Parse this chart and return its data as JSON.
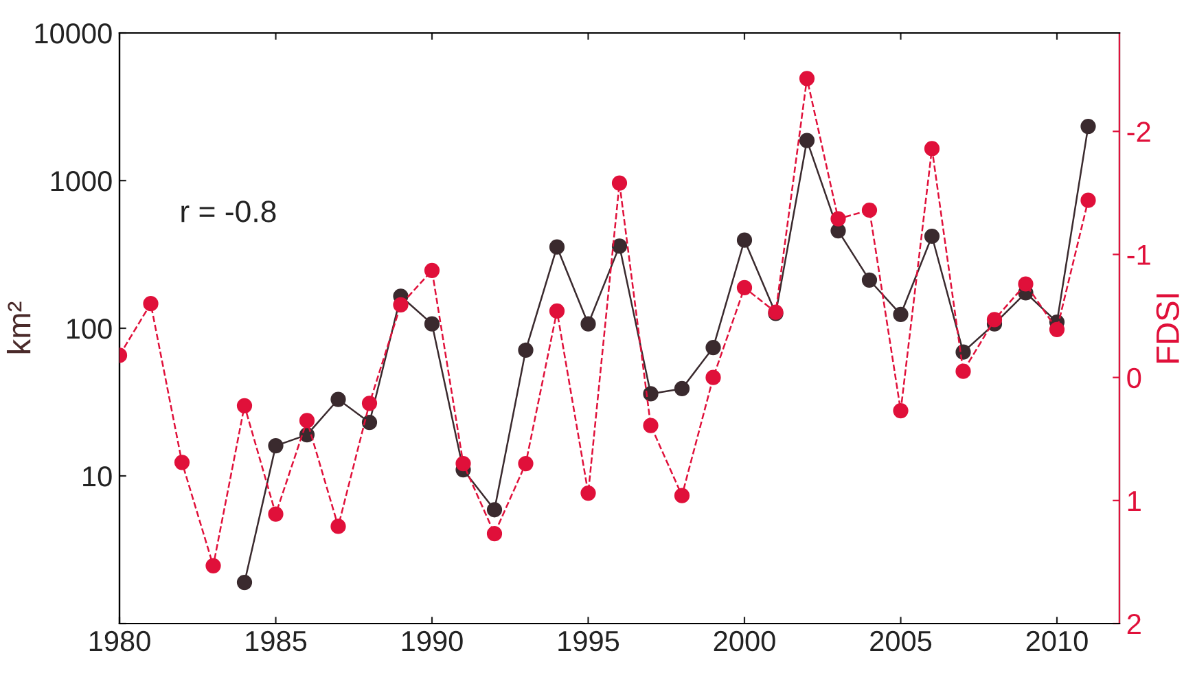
{
  "chart_data": {
    "type": "line",
    "xlabel": null,
    "ylabel": "km²",
    "y2label": "FDSI",
    "annotations": [
      "r = -0.8"
    ],
    "x": [
      1980,
      1981,
      1982,
      1983,
      1984,
      1985,
      1986,
      1987,
      1988,
      1989,
      1990,
      1991,
      1992,
      1993,
      1994,
      1995,
      1996,
      1997,
      1998,
      1999,
      2000,
      2001,
      2002,
      2003,
      2004,
      2005,
      2006,
      2007,
      2008,
      2009,
      2010,
      2011
    ],
    "series": [
      {
        "color": "#3a2a2e",
        "line_style": "solid",
        "values": [
          null,
          null,
          null,
          null,
          1.9,
          16,
          19,
          33,
          23,
          165,
          107,
          11,
          5.9,
          71,
          355,
          107,
          360,
          36,
          39,
          74,
          395,
          126,
          1870,
          457,
          212,
          124,
          420,
          69,
          107,
          174,
          110,
          2330
        ]
      },
      {
        "color": "#e0103a",
        "axis": "y2",
        "line_style": "dashed",
        "values": [
          -0.18,
          -0.6,
          0.69,
          1.53,
          0.23,
          1.11,
          0.35,
          1.21,
          0.21,
          -0.59,
          -0.87,
          0.7,
          1.27,
          0.7,
          -0.54,
          0.94,
          -1.58,
          0.39,
          0.96,
          0.0,
          -0.73,
          -0.53,
          -2.43,
          -1.29,
          -1.36,
          0.27,
          -1.86,
          -0.05,
          -0.47,
          -0.76,
          -0.39,
          -1.44
        ]
      }
    ],
    "log": "y",
    "xlim": [
      1980,
      2012
    ],
    "xticks": [
      1980,
      1985,
      1990,
      1995,
      2000,
      2005,
      2010
    ],
    "ylim": [
      1,
      10000
    ],
    "yticks": [
      {
        "value": 1,
        "label": null
      },
      10,
      100,
      1000,
      10000
    ],
    "y2lim": [
      2,
      -2.8
    ],
    "y2ticks": [
      -2,
      -1,
      0,
      1,
      2
    ],
    "marker": "circle",
    "grid": false,
    "legend": false
  }
}
